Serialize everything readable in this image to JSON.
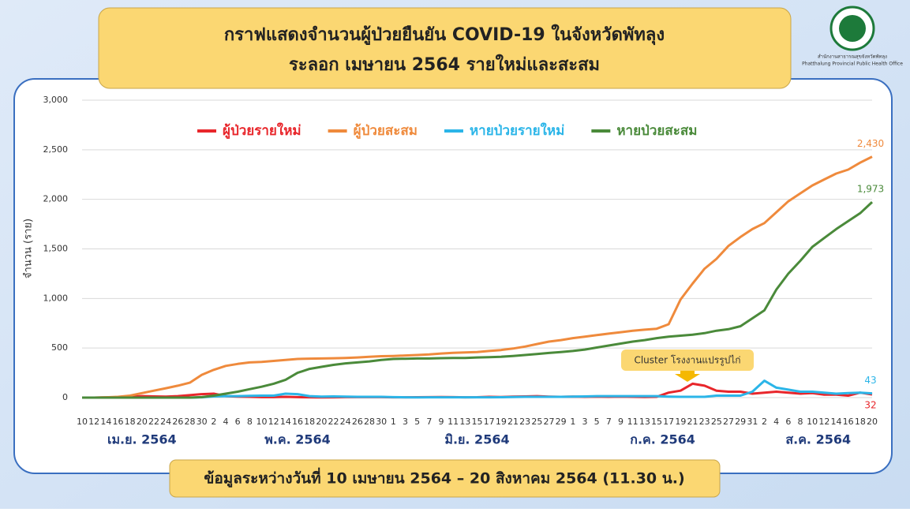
{
  "header": {
    "agency_th": "สำนักงานสาธารณสุขจังหวัดพัทลุง",
    "agency_en": "Phatthalung Provincial Public Health Office"
  },
  "chart_data": {
    "type": "line",
    "title": "กราฟแสดงจำนวนผู้ป่วยยืนยัน COVID-19 ในจังหวัดพัทลุง",
    "subtitle": "ระลอก เมษายน 2564 รายใหม่และสะสม",
    "ylabel": "จำนวน (ราย)",
    "footer": "ข้อมูลระหว่างวันที่ 10 เมษายน 2564 – 20 สิงหาคม 2564 (11.30 น.)",
    "annotation": "Cluster โรงงานแปรรูปไก่",
    "categories": [
      "10",
      "12",
      "14",
      "16",
      "18",
      "20",
      "22",
      "24",
      "26",
      "28",
      "30",
      "2",
      "4",
      "6",
      "8",
      "10",
      "12",
      "14",
      "16",
      "18",
      "20",
      "22",
      "24",
      "26",
      "28",
      "30",
      "1",
      "3",
      "5",
      "7",
      "9",
      "11",
      "13",
      "15",
      "17",
      "19",
      "21",
      "23",
      "25",
      "27",
      "29",
      "1",
      "3",
      "5",
      "7",
      "9",
      "11",
      "13",
      "15",
      "17",
      "19",
      "21",
      "23",
      "25",
      "27",
      "29",
      "31",
      "2",
      "4",
      "6",
      "8",
      "10",
      "12",
      "14",
      "16",
      "18",
      "20"
    ],
    "month_labels": [
      "เม.ย. 2564",
      "พ.ค. 2564",
      "มิ.ย. 2564",
      "ก.ค. 2564",
      "ส.ค. 2564"
    ],
    "ylim": [
      0,
      3000
    ],
    "yticks": [
      0,
      500,
      {
        "value": 1000,
        "label": "1,000"
      },
      {
        "value": 1500,
        "label": "1,500"
      },
      {
        "value": 2000,
        "label": "2,000"
      },
      {
        "value": 2500,
        "label": "2,500"
      },
      {
        "value": 3000,
        "label": "3,000"
      }
    ],
    "grid": true,
    "series": [
      {
        "name": "ผู้ป่วยรายใหม่",
        "color": "#e8262b",
        "values": [
          0,
          0,
          2,
          5,
          8,
          15,
          12,
          10,
          15,
          25,
          35,
          40,
          15,
          10,
          8,
          5,
          5,
          8,
          5,
          3,
          2,
          3,
          5,
          5,
          6,
          5,
          3,
          3,
          4,
          5,
          6,
          5,
          3,
          4,
          8,
          6,
          10,
          12,
          15,
          10,
          8,
          10,
          8,
          10,
          8,
          10,
          8,
          6,
          8,
          50,
          70,
          140,
          120,
          70,
          60,
          60,
          40,
          50,
          60,
          50,
          40,
          45,
          30,
          30,
          20,
          50,
          32
        ],
        "value_labels": [
          null,
          null,
          null,
          null,
          null,
          null,
          null,
          null,
          null,
          null,
          null,
          null,
          null,
          null,
          null,
          null,
          null,
          null,
          null,
          null,
          null,
          null,
          null,
          null,
          null,
          null,
          null,
          null,
          null,
          null,
          null,
          null,
          null,
          null,
          null,
          null,
          null,
          null,
          null,
          null,
          null,
          null,
          null,
          null,
          null,
          null,
          null,
          null,
          null,
          null,
          null,
          null,
          null,
          null,
          null,
          null,
          null,
          null,
          null,
          null,
          null,
          null,
          null,
          null,
          null,
          null,
          "32"
        ]
      },
      {
        "name": "ผู้ป่วยสะสม",
        "color": "#ef8a3c",
        "values": [
          0,
          0,
          3,
          8,
          20,
          45,
          70,
          95,
          120,
          150,
          230,
          280,
          320,
          340,
          355,
          360,
          370,
          380,
          390,
          393,
          395,
          397,
          400,
          405,
          412,
          418,
          420,
          425,
          430,
          435,
          445,
          452,
          455,
          460,
          470,
          480,
          495,
          515,
          540,
          565,
          580,
          600,
          615,
          630,
          645,
          660,
          675,
          685,
          695,
          740,
          990,
          1150,
          1300,
          1400,
          1530,
          1620,
          1700,
          1760,
          1870,
          1980,
          2060,
          2140,
          2200,
          2260,
          2300,
          2370,
          2430
        ],
        "value_labels": [
          null,
          null,
          null,
          null,
          null,
          null,
          null,
          null,
          null,
          null,
          null,
          null,
          null,
          null,
          null,
          null,
          null,
          null,
          null,
          null,
          null,
          null,
          null,
          null,
          null,
          null,
          null,
          null,
          null,
          null,
          null,
          null,
          null,
          null,
          null,
          null,
          null,
          null,
          null,
          null,
          null,
          null,
          null,
          null,
          null,
          null,
          null,
          null,
          null,
          null,
          null,
          null,
          null,
          null,
          null,
          null,
          null,
          null,
          null,
          null,
          null,
          null,
          null,
          null,
          null,
          null,
          "2,430"
        ]
      },
      {
        "name": "หายป่วยรายใหม่",
        "color": "#2bb5e8",
        "values": [
          0,
          0,
          0,
          0,
          0,
          0,
          0,
          0,
          0,
          0,
          3,
          12,
          15,
          15,
          18,
          20,
          20,
          40,
          35,
          15,
          10,
          12,
          10,
          8,
          8,
          8,
          5,
          3,
          2,
          3,
          3,
          3,
          3,
          3,
          3,
          4,
          6,
          8,
          8,
          8,
          8,
          10,
          12,
          15,
          15,
          15,
          15,
          15,
          15,
          10,
          8,
          8,
          8,
          20,
          20,
          20,
          60,
          170,
          100,
          80,
          60,
          60,
          50,
          40,
          45,
          50,
          43
        ],
        "value_labels": [
          null,
          null,
          null,
          null,
          null,
          null,
          null,
          null,
          null,
          null,
          null,
          null,
          null,
          null,
          null,
          null,
          null,
          null,
          null,
          null,
          null,
          null,
          null,
          null,
          null,
          null,
          null,
          null,
          null,
          null,
          null,
          null,
          null,
          null,
          null,
          null,
          null,
          null,
          null,
          null,
          null,
          null,
          null,
          null,
          null,
          null,
          null,
          null,
          null,
          null,
          null,
          null,
          null,
          null,
          null,
          null,
          null,
          null,
          null,
          null,
          null,
          null,
          null,
          null,
          null,
          null,
          "43"
        ]
      },
      {
        "name": "หายป่วยสะสม",
        "color": "#4a8a3a",
        "values": [
          0,
          0,
          0,
          0,
          0,
          0,
          0,
          0,
          0,
          0,
          5,
          20,
          40,
          60,
          85,
          110,
          140,
          180,
          250,
          290,
          310,
          330,
          345,
          355,
          365,
          380,
          390,
          392,
          395,
          395,
          398,
          400,
          400,
          405,
          408,
          412,
          420,
          430,
          440,
          450,
          460,
          470,
          485,
          505,
          525,
          545,
          565,
          580,
          600,
          615,
          625,
          635,
          650,
          675,
          690,
          720,
          800,
          880,
          1090,
          1250,
          1380,
          1520,
          1610,
          1700,
          1780,
          1860,
          1973
        ],
        "value_labels": [
          null,
          null,
          null,
          null,
          null,
          null,
          null,
          null,
          null,
          null,
          null,
          null,
          null,
          null,
          null,
          null,
          null,
          null,
          null,
          null,
          null,
          null,
          null,
          null,
          null,
          null,
          null,
          null,
          null,
          null,
          null,
          null,
          null,
          null,
          null,
          null,
          null,
          null,
          null,
          null,
          null,
          null,
          null,
          null,
          null,
          null,
          null,
          null,
          null,
          null,
          null,
          null,
          null,
          null,
          null,
          null,
          null,
          null,
          null,
          null,
          null,
          null,
          null,
          null,
          null,
          null,
          "1,973"
        ]
      }
    ]
  }
}
